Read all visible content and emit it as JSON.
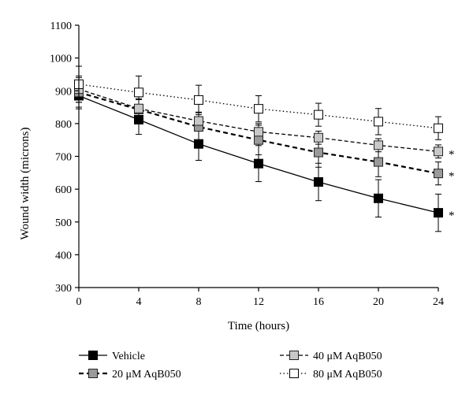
{
  "chart_data": {
    "type": "line",
    "xlabel": "Time (hours)",
    "ylabel": "Wound width (microns)",
    "x": [
      0,
      4,
      8,
      12,
      16,
      20,
      24
    ],
    "xlim": [
      0,
      24
    ],
    "ylim": [
      300,
      1100
    ],
    "xticks": [
      "0",
      "4",
      "8",
      "12",
      "16",
      "20",
      "24"
    ],
    "yticks": [
      "300",
      "400",
      "500",
      "600",
      "700",
      "800",
      "900",
      "1000",
      "1100"
    ],
    "grid": false,
    "legend_position": "bottom",
    "series": [
      {
        "name": "Vehicle",
        "values": [
          885,
          812,
          738,
          678,
          622,
          572,
          528
        ],
        "errors": [
          40,
          45,
          50,
          55,
          57,
          57,
          57
        ],
        "line": "solid",
        "marker_fill": "#000000",
        "marker_stroke": "#000000",
        "significance": "*"
      },
      {
        "name": "20 μM AqB050",
        "values": [
          895,
          843,
          790,
          750,
          712,
          683,
          648
        ],
        "errors": [
          45,
          30,
          45,
          45,
          45,
          45,
          35
        ],
        "line": "dashed-bold",
        "marker_fill": "#9a9a9a",
        "marker_stroke": "#222222",
        "significance": "*"
      },
      {
        "name": "40 μM AqB050",
        "values": [
          905,
          846,
          808,
          775,
          757,
          734,
          715
        ],
        "errors": [
          40,
          30,
          25,
          25,
          20,
          20,
          20
        ],
        "line": "dashed",
        "marker_fill": "#c8c8c8",
        "marker_stroke": "#222222",
        "significance": "*"
      },
      {
        "name": "80 μM AqB050",
        "values": [
          920,
          895,
          872,
          845,
          827,
          806,
          786
        ],
        "errors": [
          55,
          50,
          45,
          40,
          35,
          40,
          35
        ],
        "line": "dotted",
        "marker_fill": "#ffffff",
        "marker_stroke": "#000000",
        "significance": ""
      }
    ]
  }
}
